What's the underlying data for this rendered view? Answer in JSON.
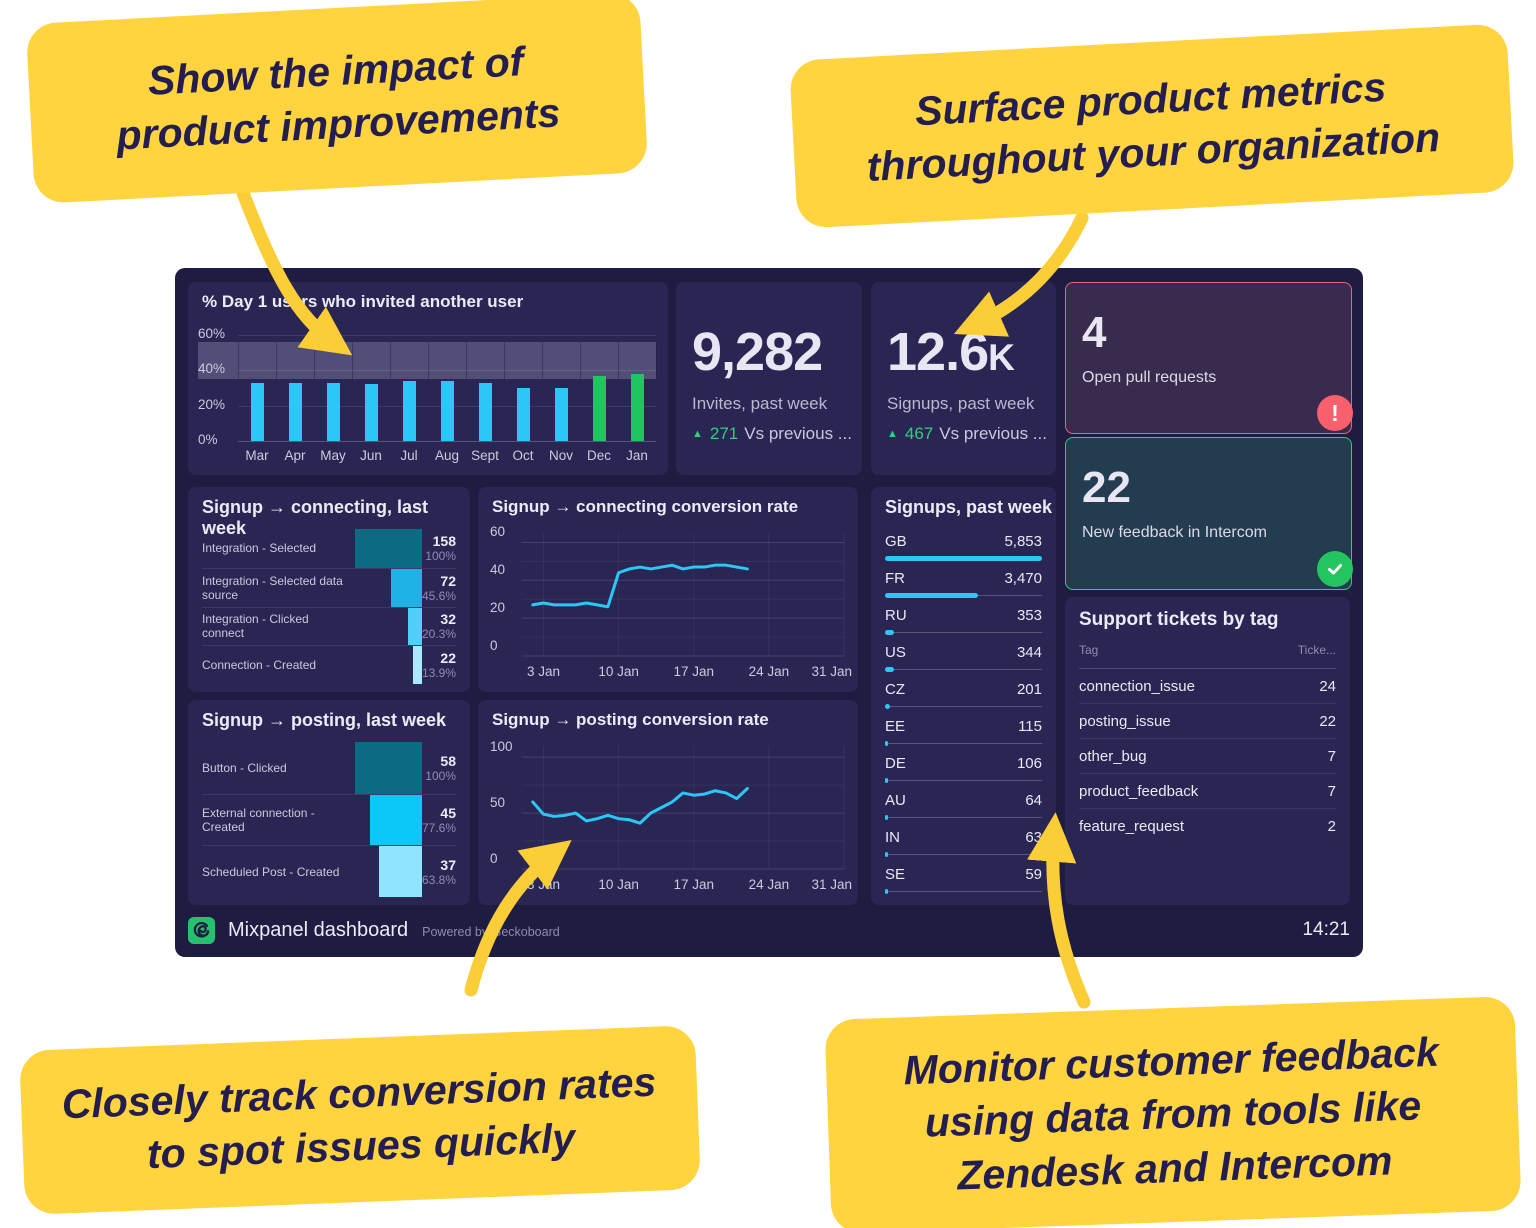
{
  "callouts": {
    "top_left": "Show the impact of\nproduct improvements",
    "top_right": "Surface product metrics\nthroughout your organization",
    "bottom_left": "Closely track conversion rates\nto spot issues quickly",
    "bottom_right": "Monitor customer feedback\nusing data from tools like\nZendesk and Intercom"
  },
  "colors": {
    "cyan": "#2bc7f7",
    "green": "#1fc561",
    "line": "#2bc7f7",
    "band": "#514e78",
    "alert": "#f8606e",
    "ok": "#22c55e",
    "callout_yellow": "#fbce38"
  },
  "dashboard": {
    "footer": {
      "title": "Mixpanel dashboard",
      "powered_by": "Powered by Geckoboard",
      "time": "14:21"
    },
    "invites": {
      "value": "9,282",
      "label": "Invites, past week",
      "delta_value": "271",
      "delta_label": "Vs previous ..."
    },
    "signups": {
      "value": "12.6",
      "suffix": "K",
      "label": "Signups, past week",
      "delta_value": "467",
      "delta_label": "Vs previous ..."
    },
    "pull_requests": {
      "value": "4",
      "label": "Open pull requests"
    },
    "feedback": {
      "value": "22",
      "label": "New feedback in Intercom"
    }
  },
  "chart_data": [
    {
      "id": "day1-invited",
      "type": "bar",
      "title": "% Day 1 users who invited another user",
      "categories": [
        "Mar",
        "Apr",
        "May",
        "Jun",
        "Jul",
        "Aug",
        "Sept",
        "Oct",
        "Nov",
        "Dec",
        "Jan"
      ],
      "values": [
        33,
        33,
        33,
        32,
        34,
        34,
        33,
        30,
        30,
        37,
        38
      ],
      "unit": "%",
      "ylim": [
        0,
        65
      ],
      "yticks": [
        {
          "v": 0,
          "label": "0%"
        },
        {
          "v": 20,
          "label": "20%"
        },
        {
          "v": 40,
          "label": "40%"
        },
        {
          "v": 60,
          "label": "60%"
        }
      ],
      "target_band": [
        35,
        56
      ],
      "bar_colors": [
        "cyan",
        "cyan",
        "cyan",
        "cyan",
        "cyan",
        "cyan",
        "cyan",
        "cyan",
        "cyan",
        "green",
        "green"
      ]
    },
    {
      "id": "signup-connecting-funnel",
      "type": "funnel",
      "title": "Signup → connecting, last week",
      "steps": [
        {
          "label": "Integration - Selected",
          "value": 158,
          "percent": "100%",
          "pct": 100
        },
        {
          "label": "Integration - Selected data source",
          "value": 72,
          "percent": "45.6%",
          "pct": 45.6
        },
        {
          "label": "Integration - Clicked connect",
          "value": 32,
          "percent": "20.3%",
          "pct": 20.3
        },
        {
          "label": "Connection - Created",
          "value": 22,
          "percent": "13.9%",
          "pct": 13.9
        }
      ],
      "colors": [
        "#0d6a83",
        "#1db3e4",
        "#4ed0fb",
        "#abe7fd"
      ]
    },
    {
      "id": "signup-connecting-rate",
      "type": "line",
      "title": "Signup → connecting conversion rate",
      "x": [
        2,
        3,
        4,
        5,
        6,
        7,
        8,
        9,
        10,
        11,
        12,
        13,
        14,
        15,
        16,
        17,
        18,
        19,
        20,
        21,
        22
      ],
      "values": [
        27,
        28,
        27,
        27,
        27,
        28,
        27,
        26,
        44,
        46,
        47,
        46,
        47,
        48,
        46,
        47,
        47,
        48,
        48,
        47,
        46
      ],
      "xlim": [
        1,
        31
      ],
      "ylim": [
        0,
        65
      ],
      "yticks": [
        {
          "v": 0,
          "label": "0"
        },
        {
          "v": 20,
          "label": "20"
        },
        {
          "v": 40,
          "label": "40"
        },
        {
          "v": 60,
          "label": "60"
        }
      ],
      "xticks": [
        {
          "v": 3,
          "label": "3 Jan"
        },
        {
          "v": 10,
          "label": "10 Jan"
        },
        {
          "v": 17,
          "label": "17 Jan"
        },
        {
          "v": 24,
          "label": "24 Jan"
        },
        {
          "v": 31,
          "label": "31 Jan"
        }
      ]
    },
    {
      "id": "signups-by-country",
      "type": "bar",
      "title": "Signups, past week",
      "entries": [
        {
          "code": "GB",
          "display": "5,853",
          "value": 5853
        },
        {
          "code": "FR",
          "display": "3,470",
          "value": 3470
        },
        {
          "code": "RU",
          "display": "353",
          "value": 353
        },
        {
          "code": "US",
          "display": "344",
          "value": 344
        },
        {
          "code": "CZ",
          "display": "201",
          "value": 201
        },
        {
          "code": "EE",
          "display": "115",
          "value": 115
        },
        {
          "code": "DE",
          "display": "106",
          "value": 106
        },
        {
          "code": "AU",
          "display": "64",
          "value": 64
        },
        {
          "code": "IN",
          "display": "63",
          "value": 63
        },
        {
          "code": "SE",
          "display": "59",
          "value": 59
        }
      ]
    },
    {
      "id": "signup-posting-funnel",
      "type": "funnel",
      "title": "Signup → posting, last week",
      "steps": [
        {
          "label": "Button - Clicked",
          "value": 58,
          "percent": "100%",
          "pct": 100
        },
        {
          "label": "External connection - Created",
          "value": 45,
          "percent": "77.6%",
          "pct": 77.6
        },
        {
          "label": "Scheduled Post - Created",
          "value": 37,
          "percent": "63.8%",
          "pct": 63.8
        }
      ],
      "colors": [
        "#0d6a83",
        "#0cc8f8",
        "#90e4fe"
      ]
    },
    {
      "id": "signup-posting-rate",
      "type": "line",
      "title": "Signup → posting conversion rate",
      "x": [
        2,
        3,
        4,
        5,
        6,
        7,
        8,
        9,
        10,
        11,
        12,
        13,
        14,
        15,
        16,
        17,
        18,
        19,
        20,
        21,
        22
      ],
      "values": [
        60,
        49,
        47,
        48,
        50,
        43,
        45,
        48,
        45,
        44,
        41,
        50,
        55,
        60,
        68,
        66,
        67,
        70,
        68,
        63,
        72
      ],
      "xlim": [
        1,
        31
      ],
      "ylim": [
        0,
        110
      ],
      "yticks": [
        {
          "v": 0,
          "label": "0"
        },
        {
          "v": 50,
          "label": "50"
        },
        {
          "v": 100,
          "label": "100"
        }
      ],
      "xticks": [
        {
          "v": 3,
          "label": "3 Jan"
        },
        {
          "v": 10,
          "label": "10 Jan"
        },
        {
          "v": 17,
          "label": "17 Jan"
        },
        {
          "v": 24,
          "label": "24 Jan"
        },
        {
          "v": 31,
          "label": "31 Jan"
        }
      ]
    },
    {
      "id": "support-tickets",
      "type": "table",
      "title": "Support tickets by tag",
      "columns": [
        "Tag",
        "Ticke..."
      ],
      "rows": [
        [
          "connection_issue",
          "24"
        ],
        [
          "posting_issue",
          "22"
        ],
        [
          "other_bug",
          "7"
        ],
        [
          "product_feedback",
          "7"
        ],
        [
          "feature_request",
          "2"
        ]
      ]
    }
  ]
}
